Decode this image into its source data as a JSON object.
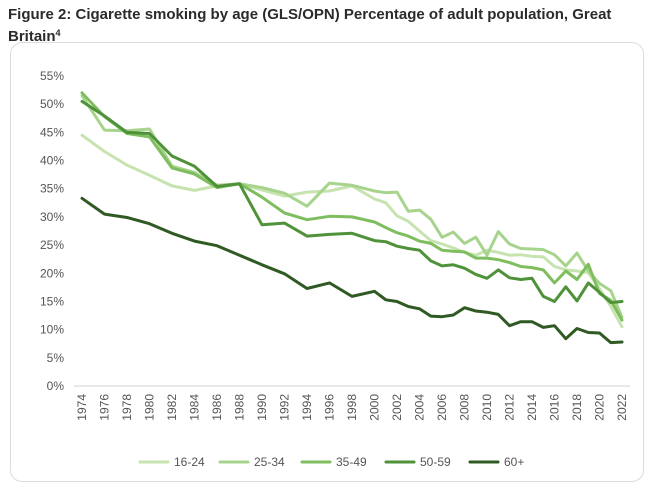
{
  "figure": {
    "title": "Figure 2: Cigarette smoking by age (GLS/OPN) Percentage of adult population, Great Britain",
    "footnote_mark": "4"
  },
  "chart_data": {
    "type": "line",
    "title": "Figure 2: Cigarette smoking by age (GLS/OPN) Percentage of adult population, Great Britain",
    "xlabel": "",
    "ylabel": "",
    "ylim": [
      0,
      55
    ],
    "yticks": [
      0,
      5,
      10,
      15,
      20,
      25,
      30,
      35,
      40,
      45,
      50,
      55
    ],
    "ytick_format": "%",
    "xlim": [
      1974,
      2022
    ],
    "xticks": [
      1974,
      1976,
      1978,
      1980,
      1982,
      1984,
      1986,
      1988,
      1990,
      1992,
      1994,
      1996,
      1998,
      2000,
      2002,
      2004,
      2006,
      2008,
      2010,
      2012,
      2014,
      2016,
      2018,
      2020,
      2022
    ],
    "grid": false,
    "legend_position": "bottom",
    "series": [
      {
        "name": "16-24",
        "color": "#c6e3b0",
        "x": [
          1974,
          1976,
          1978,
          1980,
          1982,
          1984,
          1986,
          1988,
          1990,
          1992,
          1994,
          1996,
          1998,
          2000,
          2001,
          2002,
          2003,
          2004,
          2005,
          2006,
          2007,
          2008,
          2009,
          2010,
          2011,
          2012,
          2013,
          2014,
          2015,
          2016,
          2017,
          2018,
          2019,
          2020,
          2021,
          2022
        ],
        "y": [
          44.5,
          41.6,
          39.2,
          37.4,
          35.5,
          34.7,
          35.5,
          35.8,
          34.8,
          33.7,
          34.4,
          34.6,
          35.5,
          33.2,
          32.5,
          30.2,
          29.2,
          27.5,
          25.8,
          25.2,
          24.5,
          23.7,
          23.2,
          24.1,
          23.7,
          23.2,
          23.3,
          23.0,
          22.9,
          21.2,
          20.6,
          20.4,
          20.1,
          17.3,
          14.1,
          10.5
        ]
      },
      {
        "name": "25-34",
        "color": "#a7d48d",
        "x": [
          1974,
          1976,
          1978,
          1980,
          1982,
          1984,
          1986,
          1988,
          1990,
          1992,
          1994,
          1996,
          1998,
          2000,
          2001,
          2002,
          2003,
          2004,
          2005,
          2006,
          2007,
          2008,
          2009,
          2010,
          2011,
          2012,
          2013,
          2014,
          2015,
          2016,
          2017,
          2018,
          2019,
          2020,
          2021,
          2022
        ],
        "y": [
          51.5,
          45.4,
          45.3,
          45.6,
          39.0,
          37.9,
          35.6,
          35.9,
          35.2,
          34.2,
          31.9,
          36.0,
          35.6,
          34.6,
          34.3,
          34.4,
          31.0,
          31.2,
          29.6,
          26.4,
          27.3,
          25.3,
          26.4,
          23.2,
          27.4,
          25.2,
          24.4,
          24.3,
          24.2,
          23.3,
          21.3,
          23.6,
          20.4,
          18.2,
          16.9,
          12.2
        ]
      },
      {
        "name": "35-49",
        "color": "#7ebe5e",
        "x": [
          1974,
          1976,
          1978,
          1980,
          1982,
          1984,
          1986,
          1988,
          1990,
          1992,
          1994,
          1996,
          1998,
          2000,
          2001,
          2002,
          2003,
          2004,
          2005,
          2006,
          2007,
          2008,
          2009,
          2010,
          2011,
          2012,
          2013,
          2014,
          2015,
          2016,
          2017,
          2018,
          2019,
          2020,
          2021,
          2022
        ],
        "y": [
          52.0,
          47.8,
          44.8,
          44.2,
          38.7,
          37.6,
          35.2,
          35.9,
          33.5,
          30.7,
          29.5,
          30.1,
          30.0,
          29.1,
          28.1,
          27.2,
          26.6,
          25.7,
          25.3,
          24.1,
          23.9,
          23.8,
          22.7,
          22.7,
          22.4,
          21.9,
          21.2,
          21.0,
          20.6,
          18.3,
          20.4,
          18.9,
          21.6,
          16.4,
          15.2,
          11.7
        ]
      },
      {
        "name": "50-59",
        "color": "#4f9239",
        "x": [
          1974,
          1976,
          1978,
          1980,
          1982,
          1984,
          1986,
          1988,
          1990,
          1992,
          1994,
          1996,
          1998,
          2000,
          2001,
          2002,
          2003,
          2004,
          2005,
          2006,
          2007,
          2008,
          2009,
          2010,
          2011,
          2012,
          2013,
          2014,
          2015,
          2016,
          2017,
          2018,
          2019,
          2020,
          2021,
          2022
        ],
        "y": [
          50.5,
          47.9,
          45.0,
          44.8,
          40.8,
          39.0,
          35.4,
          35.9,
          28.6,
          28.9,
          26.6,
          26.9,
          27.1,
          25.8,
          25.6,
          24.8,
          24.4,
          24.1,
          22.2,
          21.3,
          21.5,
          20.9,
          19.8,
          19.1,
          20.6,
          19.2,
          18.9,
          19.1,
          15.9,
          15.0,
          17.6,
          15.1,
          18.3,
          16.6,
          14.8,
          15.0
        ]
      },
      {
        "name": "60+",
        "color": "#2f5a23",
        "x": [
          1974,
          1976,
          1978,
          1980,
          1982,
          1984,
          1986,
          1988,
          1990,
          1992,
          1994,
          1996,
          1998,
          2000,
          2001,
          2002,
          2003,
          2004,
          2005,
          2006,
          2007,
          2008,
          2009,
          2010,
          2011,
          2012,
          2013,
          2014,
          2015,
          2016,
          2017,
          2018,
          2019,
          2020,
          2021,
          2022
        ],
        "y": [
          33.3,
          30.5,
          29.9,
          28.8,
          27.1,
          25.7,
          24.9,
          23.2,
          21.5,
          19.9,
          17.3,
          18.3,
          15.9,
          16.8,
          15.3,
          15.0,
          14.1,
          13.7,
          12.4,
          12.3,
          12.6,
          13.9,
          13.3,
          13.1,
          12.7,
          10.7,
          11.4,
          11.4,
          10.4,
          10.7,
          8.4,
          10.2,
          9.5,
          9.4,
          7.7,
          7.8
        ]
      }
    ]
  }
}
